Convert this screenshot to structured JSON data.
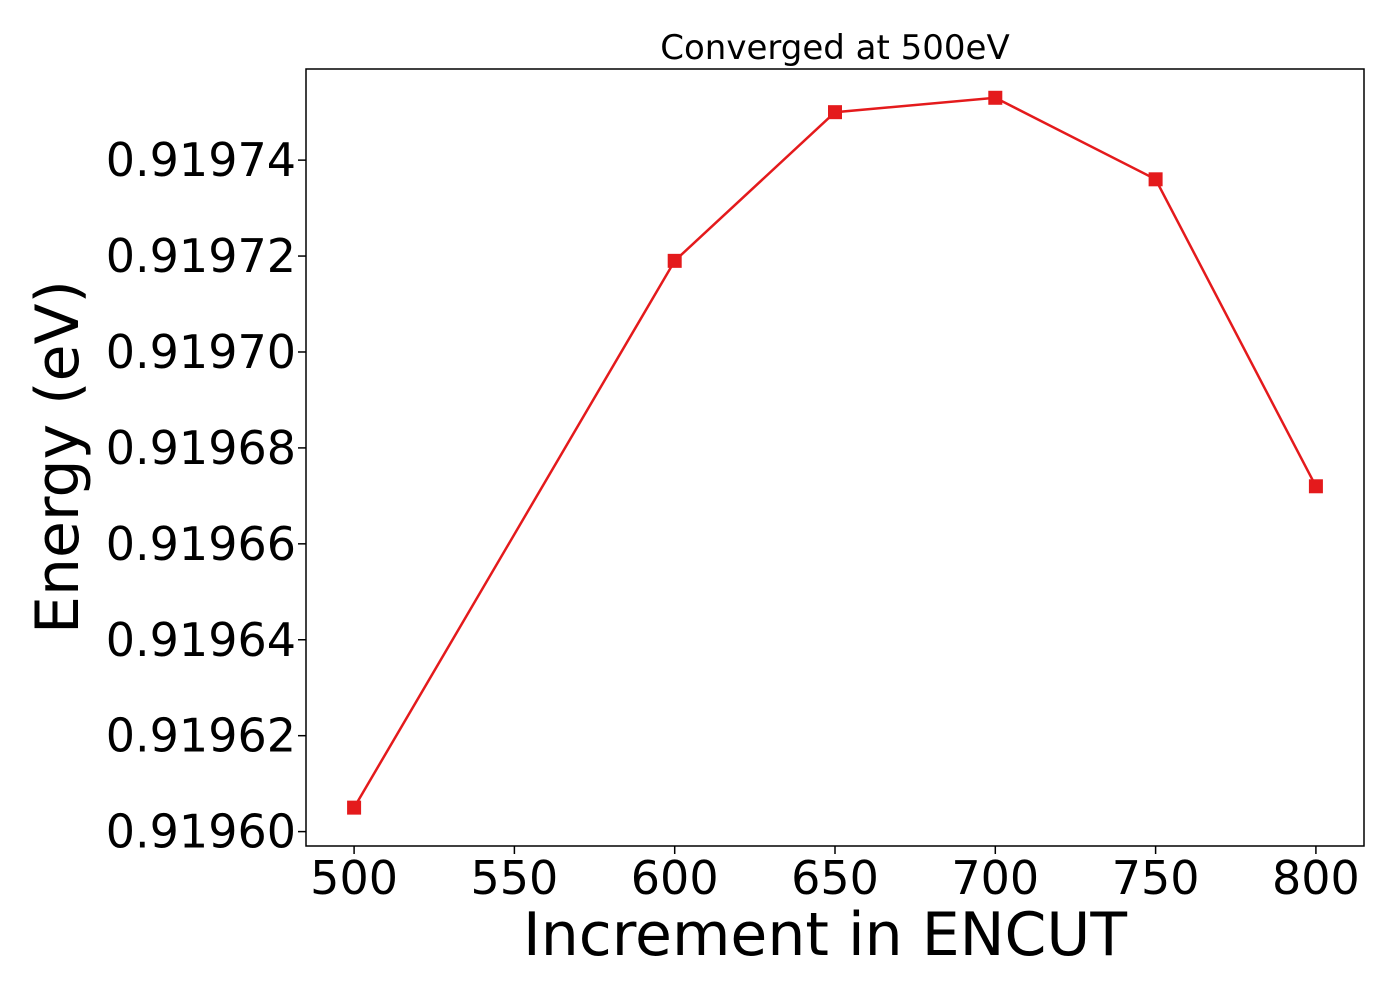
{
  "chart_data": {
    "type": "line",
    "title": "Converged at 500eV",
    "xlabel": "Increment in ENCUT",
    "ylabel": "Energy (eV)",
    "x": [
      500,
      600,
      650,
      700,
      750,
      800
    ],
    "series": [
      {
        "name": "",
        "y": [
          0.919605,
          0.919719,
          0.91975,
          0.919753,
          0.919736,
          0.919672
        ]
      }
    ],
    "xticks": [
      500,
      550,
      600,
      650,
      700,
      750,
      800
    ],
    "xtick_labels": [
      "500",
      "550",
      "600",
      "650",
      "700",
      "750",
      "800"
    ],
    "yticks": [
      0.9196,
      0.91962,
      0.91964,
      0.91966,
      0.91968,
      0.9197,
      0.91972,
      0.91974
    ],
    "ytick_labels": [
      "0.91960",
      "0.91962",
      "0.91964",
      "0.91966",
      "0.91968",
      "0.91970",
      "0.91972",
      "0.91974"
    ],
    "xlim": [
      485,
      815
    ],
    "ylim": [
      0.919597,
      0.919759
    ],
    "grid": false,
    "line_color": "#e41a1c",
    "marker": "square"
  }
}
